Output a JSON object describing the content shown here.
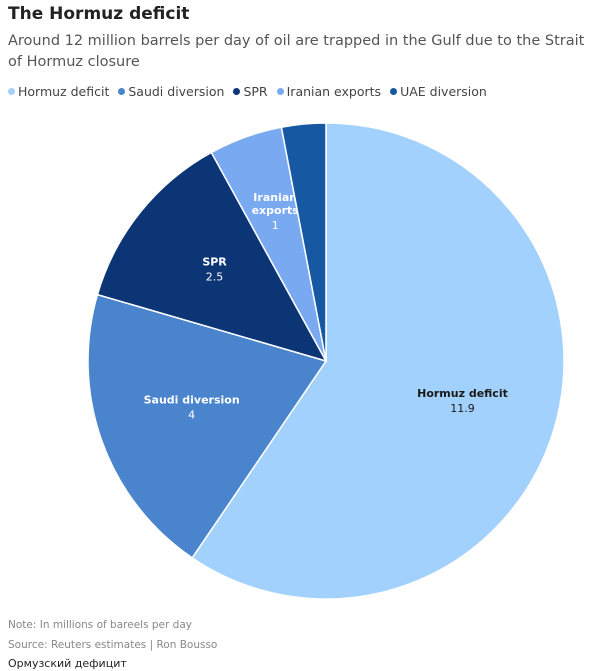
{
  "chart_data": {
    "type": "pie",
    "title": "The Hormuz deficit",
    "subtitle": "Around 12 million barrels per day of oil are trapped in the Gulf due to the Strait of Hormuz closure",
    "legend_placement": "top-left",
    "slices": [
      {
        "name": "Hormuz deficit",
        "value": 11.9,
        "label": "11.9",
        "color": "#a2d1fd",
        "label_color": "#1a1a1a",
        "show_label": true
      },
      {
        "name": "Saudi diversion",
        "value": 4,
        "label": "4",
        "color": "#4a84cc",
        "label_color": "#ffffff",
        "show_label": true
      },
      {
        "name": "SPR",
        "value": 2.5,
        "label": "2.5",
        "color": "#0c3576",
        "label_color": "#ffffff",
        "show_label": true
      },
      {
        "name": "Iranian exports",
        "value": 1,
        "label": "1",
        "color": "#78a9f1",
        "label_color": "#ffffff",
        "show_label": true
      },
      {
        "name": "UAE diversion",
        "value": 0.6,
        "label": "",
        "color": "#1659a2",
        "label_color": "#ffffff",
        "show_label": false
      }
    ],
    "note": "Note: In millions of bareels per day",
    "source": "Source: Reuters estimates | Ron Bousso",
    "caption": "Ормузский дефицит"
  }
}
